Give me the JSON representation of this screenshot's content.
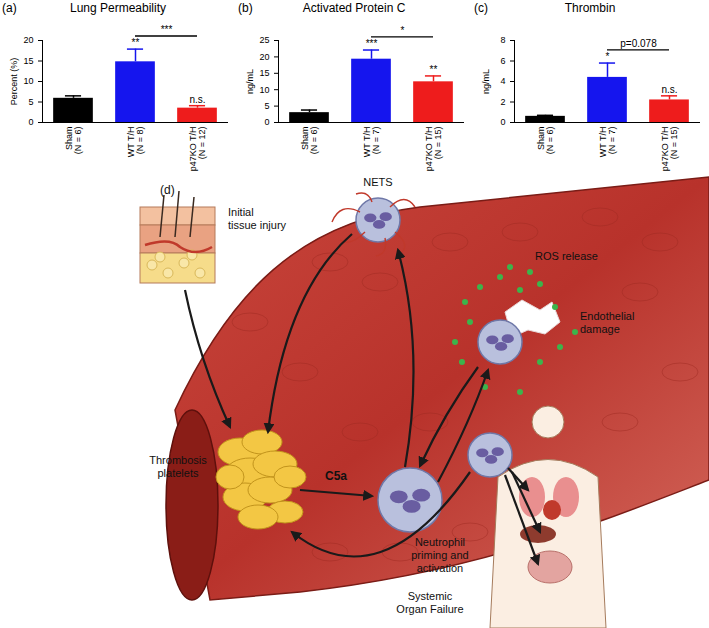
{
  "chart_data": [
    {
      "type": "bar",
      "panel_label": "(a)",
      "title": "Lung Permeability",
      "ylabel": "Percent (%)",
      "categories": [
        "Sham\n(N = 6)",
        "WT T/H\n(N = 8)",
        "p47KO T/H\n(N = 12)"
      ],
      "values": [
        5.9,
        14.8,
        3.5
      ],
      "errors": [
        0.6,
        3.1,
        0.6
      ],
      "colors": [
        "#000000",
        "#1515ee",
        "#ee1c1c"
      ],
      "ylim": [
        0,
        20
      ],
      "yticks": [
        0,
        5,
        10,
        15,
        20
      ],
      "annotations": [
        {
          "text": "**",
          "category": 1
        },
        {
          "text": "n.s.",
          "category": 2
        },
        {
          "text": "***",
          "from": 1,
          "to": 2
        }
      ]
    },
    {
      "type": "bar",
      "panel_label": "(b)",
      "title": "Activated Protein C",
      "ylabel": "ng/mL",
      "categories": [
        "Sham\n(N = 6)",
        "WT T/H\n(N = 7)",
        "p47KO T/H\n(N = 15)"
      ],
      "values": [
        3.0,
        19.3,
        12.4
      ],
      "errors": [
        0.8,
        2.8,
        1.8
      ],
      "colors": [
        "#000000",
        "#1515ee",
        "#ee1c1c"
      ],
      "ylim": [
        0,
        25
      ],
      "yticks": [
        0,
        5,
        10,
        15,
        20,
        25
      ],
      "annotations": [
        {
          "text": "***",
          "category": 1
        },
        {
          "text": "**",
          "category": 2
        },
        {
          "text": "*",
          "from": 1,
          "to": 2
        }
      ]
    },
    {
      "type": "bar",
      "panel_label": "(c)",
      "title": "Thrombin",
      "ylabel": "ng/mL",
      "categories": [
        "Sham\n(N = 6)",
        "WT T/H\n(N = 7)",
        "p47KO T/H\n(N = 15)"
      ],
      "values": [
        0.6,
        4.4,
        2.2
      ],
      "errors": [
        0.1,
        1.4,
        0.4
      ],
      "colors": [
        "#000000",
        "#1515ee",
        "#ee1c1c"
      ],
      "ylim": [
        0,
        8
      ],
      "yticks": [
        0,
        2,
        4,
        6,
        8
      ],
      "annotations": [
        {
          "text": "*",
          "category": 1
        },
        {
          "text": "n.s.",
          "category": 2
        },
        {
          "text": "p=0.078",
          "from": 1,
          "to": 2
        }
      ]
    }
  ],
  "diagram": {
    "panel_label": "(d)",
    "labels": {
      "injury": [
        "Initial",
        "tissue injury"
      ],
      "nets": [
        "NETS"
      ],
      "ros": [
        "ROS release"
      ],
      "damage": [
        "Endothelial",
        "damage"
      ],
      "thrombosis": [
        "Thrombosis",
        "platelets"
      ],
      "c5a": [
        "C5a"
      ],
      "neutrophil": [
        "Neutrophil",
        "priming and",
        "activation"
      ],
      "failure": [
        "Systemic",
        "Organ Failure"
      ]
    }
  }
}
